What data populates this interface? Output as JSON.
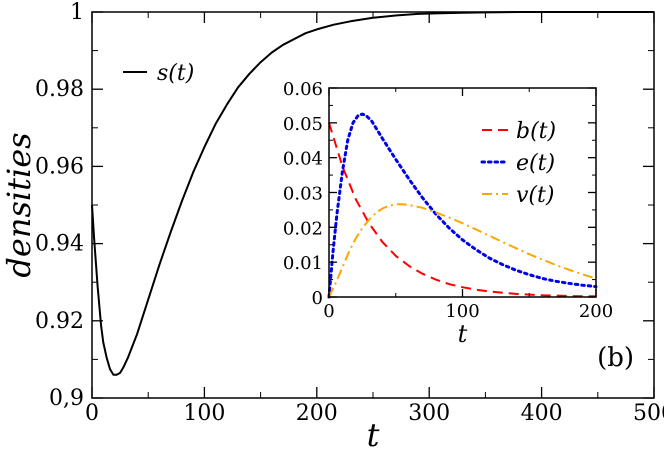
{
  "chart_data": [
    {
      "type": "line",
      "title": "",
      "xlabel": "t",
      "ylabel": "densities",
      "xlim": [
        0,
        500
      ],
      "ylim": [
        0.9,
        1.0
      ],
      "xticks": [
        0,
        100,
        200,
        300,
        400,
        500
      ],
      "xtick_labels": [
        "0",
        "100",
        "200",
        "300",
        "400",
        "500"
      ],
      "yticks": [
        0.9,
        0.92,
        0.94,
        0.96,
        0.98,
        1.0
      ],
      "ytick_labels": [
        "0,9",
        "0.92",
        "0.94",
        "0.96",
        "0.98",
        "1"
      ],
      "legend": {
        "placement": "top-left"
      },
      "series": [
        {
          "name": "s(t)",
          "color": "#000000",
          "style": "solid",
          "x": [
            0,
            2,
            5,
            8,
            10,
            13,
            16,
            19,
            22,
            25,
            28,
            32,
            36,
            40,
            45,
            50,
            60,
            70,
            80,
            90,
            100,
            110,
            120,
            130,
            140,
            150,
            160,
            170,
            180,
            190,
            200,
            215,
            230,
            250,
            270,
            290,
            310,
            330,
            350,
            380,
            410,
            440,
            470,
            500
          ],
          "y": [
            0.95,
            0.941,
            0.929,
            0.919,
            0.9145,
            0.9105,
            0.9075,
            0.906,
            0.906,
            0.9065,
            0.908,
            0.9105,
            0.9135,
            0.9165,
            0.921,
            0.9255,
            0.9345,
            0.943,
            0.951,
            0.9585,
            0.965,
            0.971,
            0.976,
            0.9805,
            0.984,
            0.987,
            0.9895,
            0.9915,
            0.993,
            0.9945,
            0.9955,
            0.9967,
            0.9976,
            0.9985,
            0.9991,
            0.9995,
            0.9997,
            0.9998,
            0.9999,
            1.0,
            1.0,
            1.0,
            1.0,
            1.0
          ]
        }
      ]
    },
    {
      "type": "line",
      "title": "",
      "panel_label": "(b)",
      "xlabel": "t",
      "ylabel": "",
      "xlim": [
        0,
        200
      ],
      "ylim": [
        0,
        0.06
      ],
      "xticks": [
        0,
        100,
        200
      ],
      "xtick_labels": [
        "0",
        "100",
        "200"
      ],
      "yticks": [
        0,
        0.01,
        0.02,
        0.03,
        0.04,
        0.05,
        0.06
      ],
      "ytick_labels": [
        "0",
        "0.01",
        "0.02",
        "0.03",
        "0.04",
        "0.05",
        "0.06"
      ],
      "legend": {
        "placement": "top-right"
      },
      "series": [
        {
          "name": "b(t)",
          "color": "#ff0000",
          "style": "dashed",
          "x": [
            0,
            10,
            20,
            30,
            40,
            50,
            60,
            70,
            80,
            90,
            100,
            110,
            120,
            130,
            140,
            150,
            160,
            170,
            180,
            190,
            200
          ],
          "y": [
            0.05,
            0.0375,
            0.0281,
            0.0211,
            0.0158,
            0.0118,
            0.0089,
            0.0067,
            0.005,
            0.0037,
            0.0028,
            0.0021,
            0.0016,
            0.0012,
            0.0009,
            0.0007,
            0.0005,
            0.0004,
            0.0003,
            0.0002,
            0.0002
          ]
        },
        {
          "name": "e(t)",
          "color": "#0000ee",
          "style": "dotted",
          "x": [
            0,
            3,
            6,
            10,
            14,
            18,
            22,
            25,
            28,
            32,
            36,
            40,
            45,
            50,
            60,
            70,
            80,
            90,
            100,
            110,
            120,
            130,
            140,
            150,
            160,
            170,
            180,
            190,
            200
          ],
          "y": [
            0.0,
            0.013,
            0.024,
            0.036,
            0.045,
            0.05,
            0.0522,
            0.0525,
            0.052,
            0.0505,
            0.048,
            0.0455,
            0.0425,
            0.0395,
            0.0338,
            0.0285,
            0.0238,
            0.0198,
            0.0164,
            0.0136,
            0.0112,
            0.0093,
            0.0077,
            0.0064,
            0.0053,
            0.0045,
            0.0039,
            0.0034,
            0.003
          ]
        },
        {
          "name": "v(t)",
          "color": "#ffa500",
          "style": "dashdot",
          "x": [
            0,
            5,
            10,
            15,
            20,
            25,
            30,
            35,
            40,
            45,
            50,
            55,
            60,
            70,
            80,
            90,
            100,
            110,
            120,
            130,
            140,
            150,
            160,
            170,
            180,
            190,
            200
          ],
          "y": [
            0.0,
            0.004,
            0.0085,
            0.013,
            0.0168,
            0.0198,
            0.0222,
            0.0241,
            0.0254,
            0.0262,
            0.0266,
            0.0266,
            0.0264,
            0.0256,
            0.0243,
            0.0228,
            0.0212,
            0.0194,
            0.0176,
            0.0158,
            0.014,
            0.0123,
            0.0107,
            0.0092,
            0.0078,
            0.0065,
            0.0053
          ]
        }
      ]
    }
  ]
}
